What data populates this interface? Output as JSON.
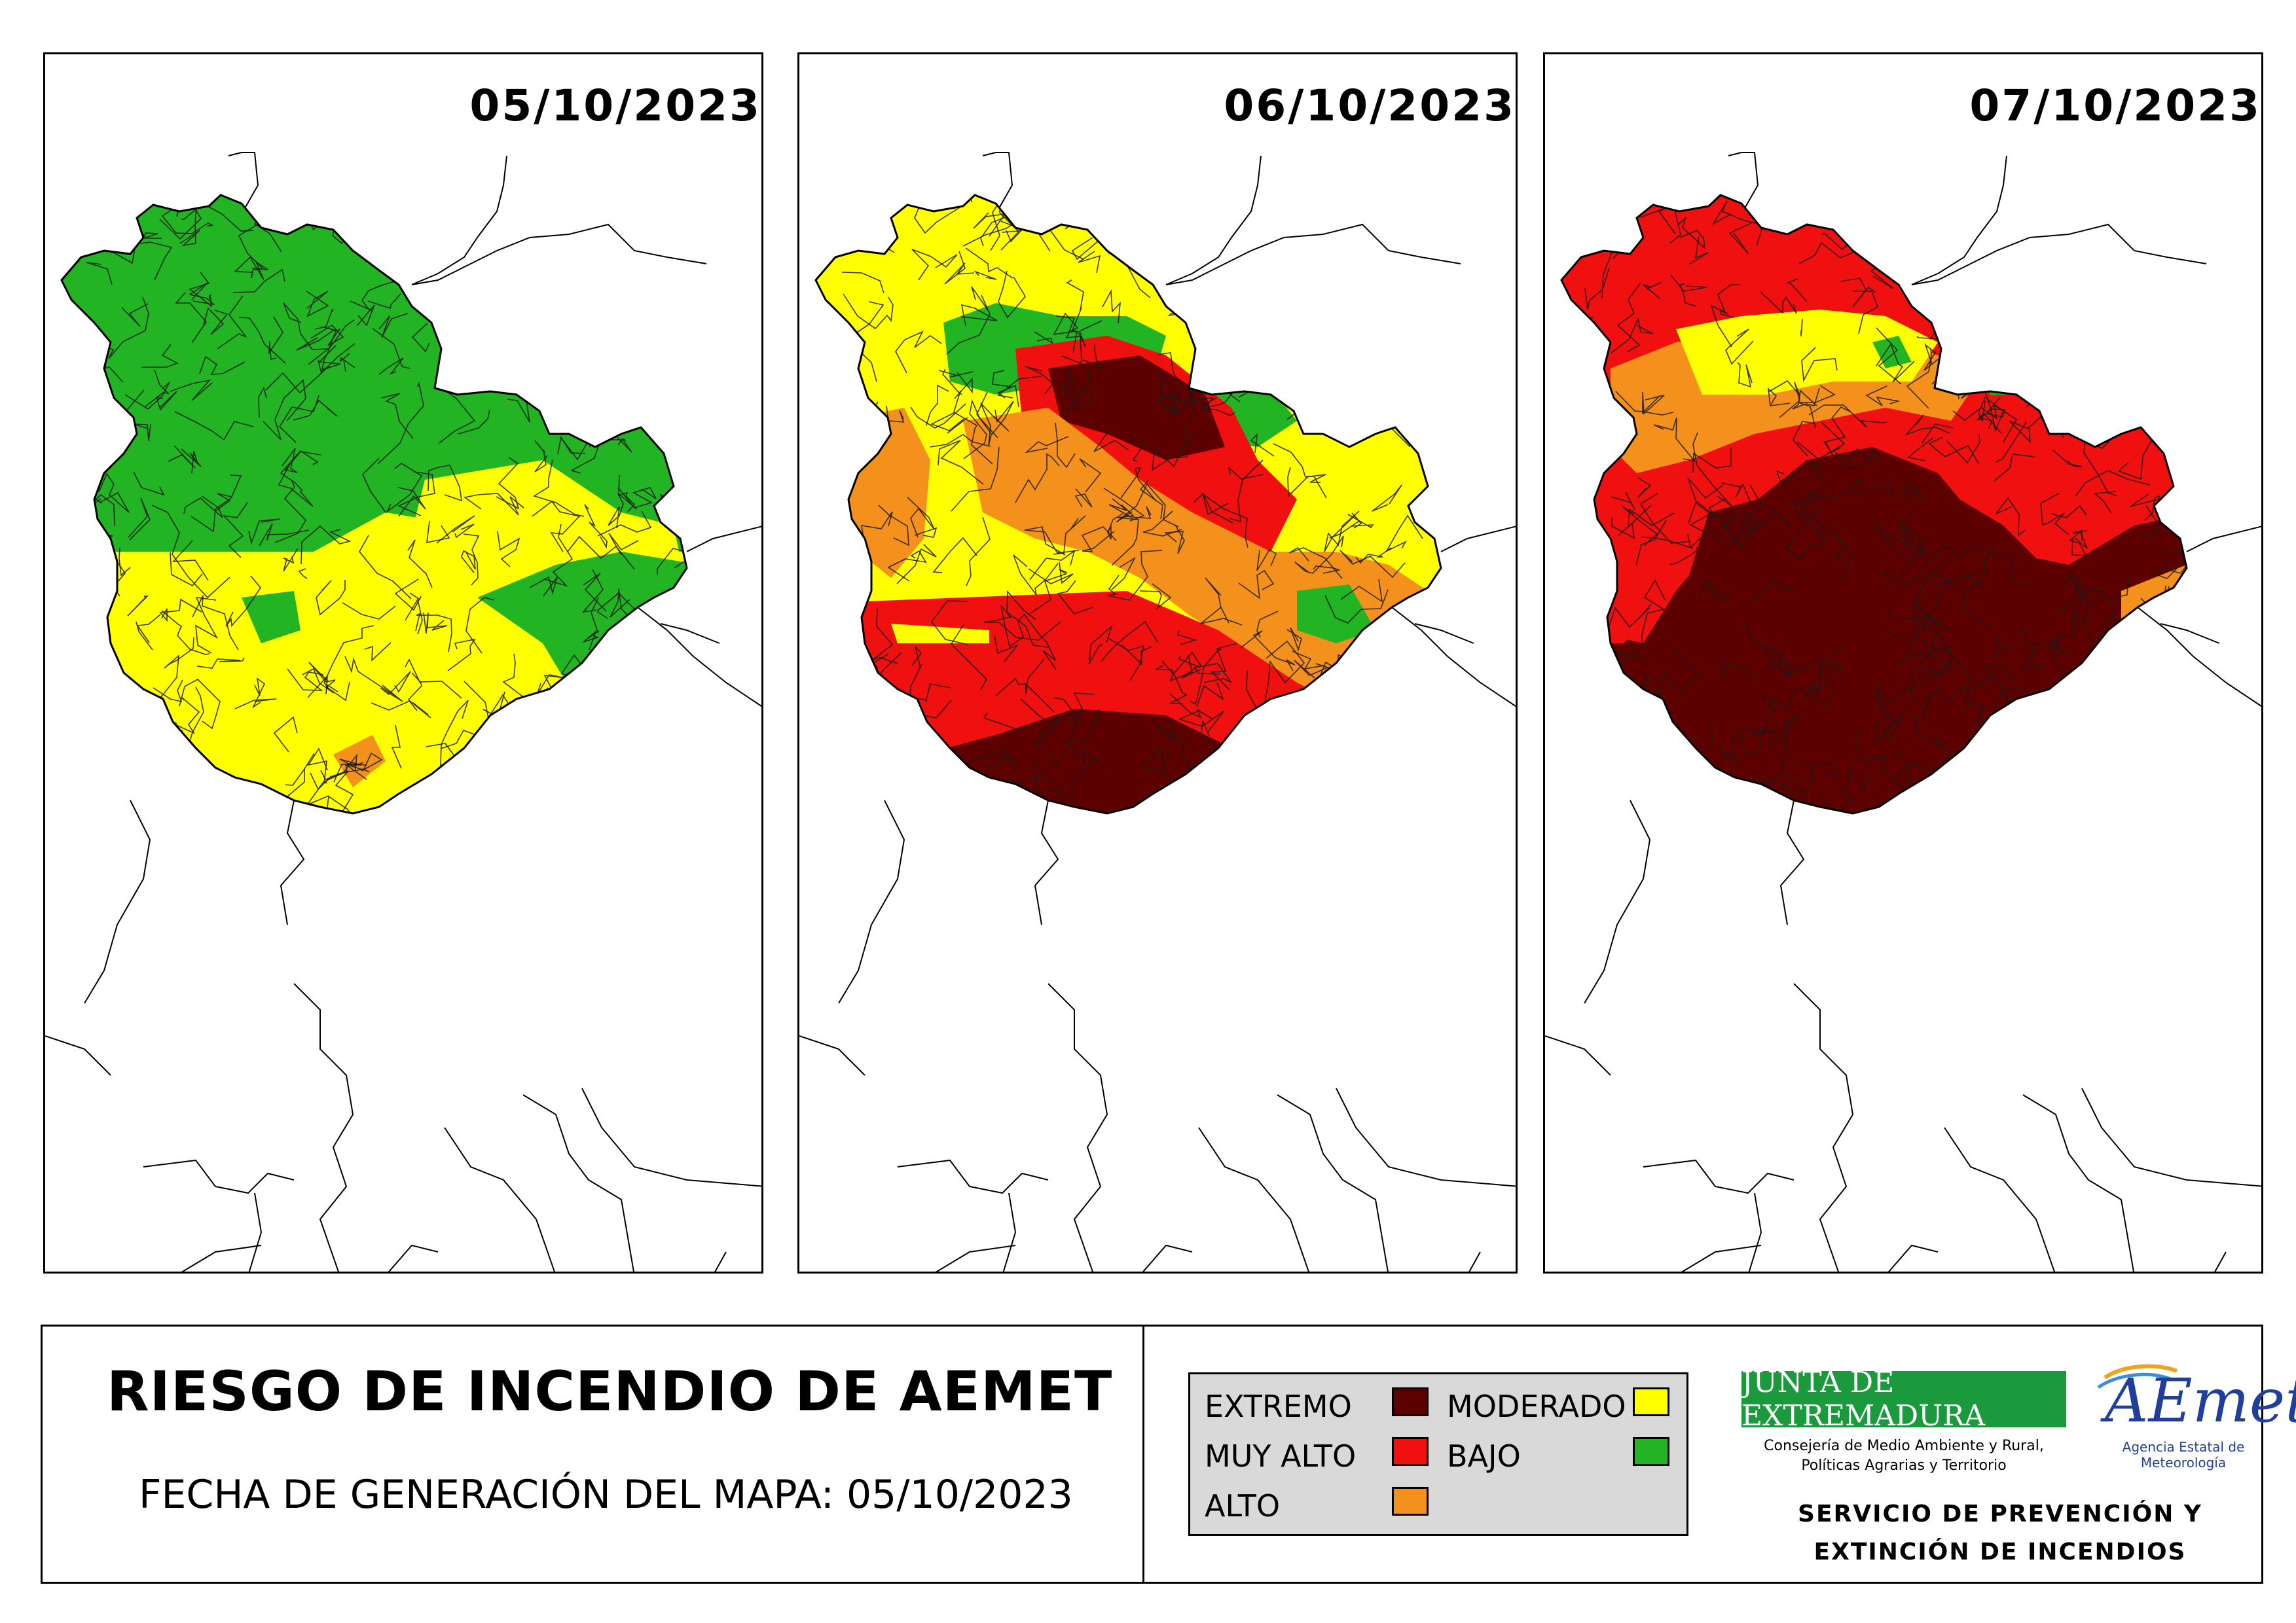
{
  "panels": [
    {
      "date": "05/10/2023",
      "dominant_risk": "BAJO"
    },
    {
      "date": "06/10/2023",
      "dominant_risk": "MUY ALTO"
    },
    {
      "date": "07/10/2023",
      "dominant_risk": "EXTREMO"
    }
  ],
  "footer": {
    "title": "RIESGO DE INCENDIO DE AEMET",
    "generation_date": "FECHA DE GENERACIÓN DEL MAPA: 05/10/2023"
  },
  "legend": {
    "items": [
      {
        "label": "EXTREMO",
        "color": "#5c0000"
      },
      {
        "label": "MUY ALTO",
        "color": "#f01010"
      },
      {
        "label": "ALTO",
        "color": "#f4901c"
      },
      {
        "label": "MODERADO",
        "color": "#ffff00"
      },
      {
        "label": "BAJO",
        "color": "#22b422"
      }
    ]
  },
  "logos": {
    "junta_name": "JUNTA DE EXTREMADURA",
    "junta_sub_1": "Consejería de Medio Ambiente y Rural,",
    "junta_sub_2": "Políticas Agrarias y Territorio",
    "aemet_name": "AEmet",
    "aemet_agency": "Agencia Estatal de Meteorología"
  },
  "service": {
    "line1": "SERVICIO DE PREVENCIÓN Y",
    "line2": "EXTINCIÓN DE INCENDIOS"
  }
}
